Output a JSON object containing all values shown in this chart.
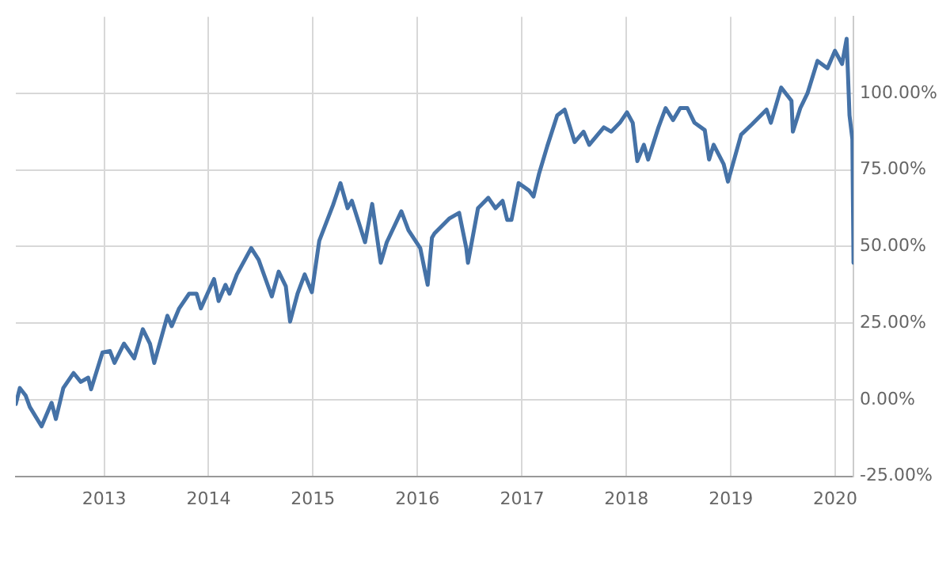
{
  "chart_data": {
    "type": "line",
    "x": [
      "2012-02-27",
      "2012-03-12",
      "2012-04-01",
      "2012-04-16",
      "2012-05-27",
      "2012-07-01",
      "2012-07-16",
      "2012-08-11",
      "2012-09-16",
      "2012-10-11",
      "2012-11-06",
      "2012-11-16",
      "2012-12-26",
      "2013-01-21",
      "2013-02-06",
      "2013-03-11",
      "2013-04-16",
      "2013-05-16",
      "2013-06-10",
      "2013-06-25",
      "2013-08-10",
      "2013-08-25",
      "2013-09-20",
      "2013-10-25",
      "2013-11-20",
      "2013-12-05",
      "2014-01-20",
      "2014-02-05",
      "2014-03-01",
      "2014-03-15",
      "2014-04-10",
      "2014-05-30",
      "2014-06-25",
      "2014-08-10",
      "2014-09-03",
      "2014-09-28",
      "2014-10-13",
      "2014-11-08",
      "2014-12-03",
      "2014-12-28",
      "2015-01-23",
      "2015-03-12",
      "2015-04-07",
      "2015-05-02",
      "2015-05-17",
      "2015-07-02",
      "2015-07-27",
      "2015-08-26",
      "2015-09-16",
      "2015-11-06",
      "2015-12-01",
      "2016-01-11",
      "2016-02-06",
      "2016-02-21",
      "2016-03-01",
      "2016-04-21",
      "2016-05-26",
      "2016-06-20",
      "2016-06-26",
      "2016-07-31",
      "2016-09-05",
      "2016-09-30",
      "2016-10-25",
      "2016-11-10",
      "2016-11-25",
      "2016-12-20",
      "2017-01-25",
      "2017-02-10",
      "2017-03-01",
      "2017-03-30",
      "2017-05-04",
      "2017-05-30",
      "2017-07-04",
      "2017-08-04",
      "2017-08-24",
      "2017-10-14",
      "2017-11-09",
      "2017-12-09",
      "2018-01-03",
      "2018-01-23",
      "2018-02-08",
      "2018-03-03",
      "2018-03-18",
      "2018-04-23",
      "2018-05-18",
      "2018-06-13",
      "2018-07-08",
      "2018-08-02",
      "2018-08-27",
      "2018-10-02",
      "2018-10-17",
      "2018-11-02",
      "2018-12-07",
      "2018-12-22",
      "2019-02-06",
      "2019-03-16",
      "2019-05-06",
      "2019-05-21",
      "2019-06-26",
      "2019-08-01",
      "2019-08-06",
      "2019-09-01",
      "2019-09-26",
      "2019-10-31",
      "2019-12-05",
      "2019-12-31",
      "2020-01-25",
      "2020-02-10",
      "2020-02-20",
      "2020-03-01",
      "2020-03-05"
    ],
    "series": [
      {
        "color": "#4572a7",
        "values": [
          -1.4,
          3.8,
          1.4,
          -2.4,
          -8.7,
          -1,
          -6.3,
          3.8,
          8.7,
          5.8,
          7.2,
          3.4,
          15.4,
          15.9,
          12,
          18.3,
          13.5,
          23,
          18.3,
          12,
          27.4,
          24,
          29.8,
          34.6,
          34.6,
          29.8,
          39.4,
          32.2,
          37.5,
          34.6,
          40.9,
          49.5,
          45.7,
          33.7,
          41.8,
          37,
          25.5,
          34.6,
          40.9,
          35.1,
          51.9,
          63.5,
          70.7,
          62.5,
          64.9,
          51.4,
          63.9,
          44.7,
          51.4,
          61.5,
          55.3,
          49.5,
          37.5,
          52.9,
          54.3,
          59.1,
          61,
          49.5,
          44.7,
          62.5,
          65.9,
          62.5,
          64.9,
          58.7,
          58.7,
          70.7,
          68.3,
          66.3,
          73.6,
          82.7,
          92.8,
          94.7,
          84.1,
          87.5,
          83.2,
          88.9,
          87.5,
          90.4,
          93.8,
          90.4,
          77.9,
          83.2,
          78.4,
          88.9,
          95.2,
          91.3,
          95.2,
          95.2,
          90.4,
          88,
          78.4,
          83.2,
          76.9,
          71.2,
          86.5,
          89.9,
          94.7,
          90.4,
          101.9,
          97.6,
          87.5,
          95.2,
          100,
          110.6,
          108.2,
          113.9,
          109.6,
          117.8,
          92.8,
          85.1,
          44.7
        ]
      }
    ],
    "xlim": [
      "2012-02-27",
      "2020-03-05"
    ],
    "xticks": [
      "2013",
      "2014",
      "2015",
      "2016",
      "2017",
      "2018",
      "2019",
      "2020"
    ],
    "ylim": [
      -25,
      125
    ],
    "yticks": [
      {
        "value": -25,
        "label": "-25.00%"
      },
      {
        "value": 0,
        "label": "0.00%"
      },
      {
        "value": 25,
        "label": "25.00%"
      },
      {
        "value": 50,
        "label": "50.00%"
      },
      {
        "value": 75,
        "label": "75.00%"
      },
      {
        "value": 100,
        "label": "100.00%"
      }
    ],
    "grid": true,
    "legend": false,
    "marker": "none",
    "line_style": "solid"
  }
}
